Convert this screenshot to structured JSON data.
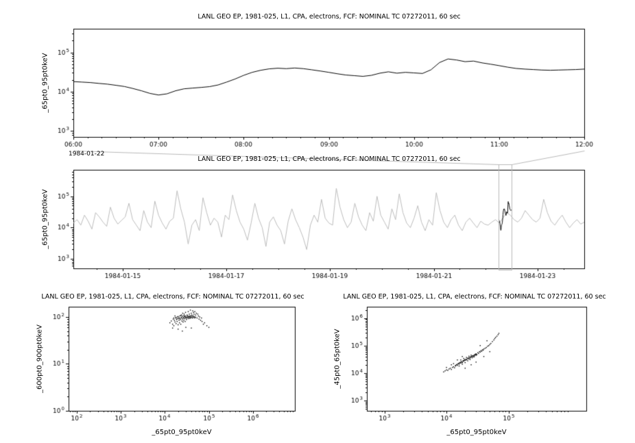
{
  "chart_data": [
    {
      "id": "timeseries-zoom",
      "type": "line",
      "title": "LANL GEO EP, 1981-025, L1, CPA, electrons, FCF: NOMINAL TC 07272011, 60 sec",
      "ylabel": "_65pt0_95pt0keV",
      "date_label": "1984-01-22",
      "x_axis": {
        "scale": "linear",
        "range": [
          6,
          12
        ],
        "tick_values": [
          6,
          7,
          8,
          9,
          10,
          11,
          12
        ],
        "tick_labels": [
          "06:00",
          "07:00",
          "08:00",
          "09:00",
          "10:00",
          "11:00",
          "12:00"
        ],
        "minor_step": 0.1666667
      },
      "y_axis": {
        "scale": "log",
        "range": [
          700,
          400000
        ],
        "tick_exponents": [
          3,
          4,
          5
        ]
      },
      "series": [
        {
          "name": "_65pt0_95pt0keV",
          "color": "#000000",
          "x_start": 6.0,
          "x_step": 0.1,
          "values": [
            18000,
            17500,
            17000,
            16200,
            15500,
            14500,
            13500,
            12000,
            10500,
            9000,
            8200,
            8800,
            10500,
            11800,
            12300,
            12800,
            13400,
            14800,
            17500,
            21000,
            26000,
            31000,
            35000,
            38000,
            39500,
            38500,
            40000,
            38500,
            36000,
            33500,
            31000,
            28500,
            26500,
            25500,
            24500,
            26000,
            29500,
            32000,
            29500,
            31000,
            30000,
            29000,
            36000,
            55000,
            68000,
            64000,
            58000,
            60000,
            54000,
            50000,
            46000,
            42000,
            39000,
            37500,
            36500,
            35500,
            35000,
            35500,
            36000,
            36500,
            37500
          ]
        }
      ]
    },
    {
      "id": "timeseries-context",
      "type": "line",
      "title": "LANL GEO EP, 1981-025, L1, CPA, electrons, FCF: NOMINAL TC 07272011, 60 sec",
      "ylabel": "_65pt0_95pt0keV",
      "x_axis": {
        "scale": "linear",
        "range": [
          14.05,
          23.9
        ],
        "tick_values": [
          15,
          17,
          19,
          21,
          23
        ],
        "tick_labels": [
          "1984-01-15",
          "1984-01-17",
          "1984-01-19",
          "1984-01-21",
          "1984-01-23"
        ],
        "minor_step": 0.5
      },
      "y_axis": {
        "scale": "log",
        "range": [
          500,
          700000
        ],
        "tick_exponents": [
          3,
          4,
          5
        ]
      },
      "selection": {
        "x_range": [
          22.25,
          22.5
        ],
        "color": "#b8b8b8"
      },
      "series": [
        {
          "name": "context",
          "color": "#bbbbbb",
          "x_start": 14.05,
          "x_step": 0.0714,
          "values": [
            14000,
            18000,
            12000,
            25000,
            16000,
            9000,
            30000,
            22000,
            15000,
            11000,
            45000,
            20000,
            13000,
            17000,
            22000,
            60000,
            18000,
            12000,
            8000,
            35000,
            15000,
            10000,
            70000,
            25000,
            14000,
            9000,
            16000,
            20000,
            150000,
            40000,
            15000,
            3000,
            12000,
            18000,
            8000,
            90000,
            30000,
            12000,
            20000,
            15000,
            5000,
            25000,
            18000,
            110000,
            35000,
            15000,
            9000,
            4000,
            14000,
            60000,
            20000,
            10000,
            2500,
            15000,
            22000,
            12000,
            8000,
            3000,
            16000,
            40000,
            18000,
            10000,
            5000,
            2000,
            12000,
            25000,
            15000,
            80000,
            20000,
            14000,
            12000,
            180000,
            45000,
            18000,
            10000,
            15000,
            60000,
            22000,
            12000,
            8000,
            30000,
            16000,
            100000,
            25000,
            15000,
            9000,
            40000,
            18000,
            120000,
            30000,
            14000,
            10000,
            20000,
            50000,
            15000,
            8000,
            18000,
            12000,
            130000,
            35000,
            15000,
            10000,
            18000,
            25000,
            12000,
            8000,
            15000,
            20000,
            14000,
            10000,
            16000,
            13000,
            12000,
            15000,
            18000,
            14000,
            20000,
            30000,
            25000,
            18000,
            15000,
            20000,
            35000,
            25000,
            18000,
            15000,
            20000,
            80000,
            30000,
            16000,
            12000,
            18000,
            25000,
            15000,
            10000,
            14000,
            18000,
            13000,
            15000
          ]
        },
        {
          "name": "highlight",
          "color": "#000000",
          "x_start": 22.25,
          "x_step": 0.0041667,
          "values_ref_chart": 0
        }
      ]
    },
    {
      "id": "scatter-600-900",
      "type": "scatter",
      "title": "LANL GEO EP, 1981-025, L1, CPA, electrons, FCF: NOMINAL TC 07272011, 60 sec",
      "xlabel": "_65pt0_95pt0keV",
      "ylabel": "_600pt0_900pt0keV",
      "x_axis": {
        "scale": "log",
        "range": [
          65,
          9000000
        ],
        "tick_exponents": [
          2,
          3,
          4,
          5,
          6
        ]
      },
      "y_axis": {
        "scale": "log",
        "range": [
          1,
          165
        ],
        "tick_exponents": [
          0,
          1,
          2
        ]
      },
      "points": [
        [
          13000,
          75
        ],
        [
          14000,
          82
        ],
        [
          15000,
          70
        ],
        [
          15500,
          90
        ],
        [
          16000,
          65
        ],
        [
          16500,
          85
        ],
        [
          17000,
          78
        ],
        [
          17500,
          95
        ],
        [
          18000,
          72
        ],
        [
          18500,
          88
        ],
        [
          19000,
          80
        ],
        [
          19500,
          100
        ],
        [
          20000,
          68
        ],
        [
          20500,
          92
        ],
        [
          21000,
          85
        ],
        [
          21500,
          75
        ],
        [
          22000,
          105
        ],
        [
          22500,
          88
        ],
        [
          23000,
          70
        ],
        [
          23500,
          95
        ],
        [
          24000,
          110
        ],
        [
          24500,
          82
        ],
        [
          25000,
          90
        ],
        [
          25500,
          120
        ],
        [
          26000,
          78
        ],
        [
          26500,
          98
        ],
        [
          27000,
          85
        ],
        [
          27500,
          115
        ],
        [
          28000,
          92
        ],
        [
          28500,
          105
        ],
        [
          29000,
          80
        ],
        [
          29500,
          125
        ],
        [
          30000,
          95
        ],
        [
          31000,
          88
        ],
        [
          32000,
          110
        ],
        [
          33000,
          100
        ],
        [
          34000,
          130
        ],
        [
          35000,
          92
        ],
        [
          36000,
          115
        ],
        [
          37000,
          105
        ],
        [
          38000,
          140
        ],
        [
          39000,
          98
        ],
        [
          40000,
          120
        ],
        [
          41000,
          110
        ],
        [
          42000,
          95
        ],
        [
          43000,
          135
        ],
        [
          44000,
          105
        ],
        [
          45000,
          125
        ],
        [
          46000,
          115
        ],
        [
          47000,
          100
        ],
        [
          48000,
          130
        ],
        [
          50000,
          110
        ],
        [
          52000,
          120
        ],
        [
          54000,
          95
        ],
        [
          56000,
          115
        ],
        [
          58000,
          105
        ],
        [
          60000,
          90
        ],
        [
          62000,
          100
        ],
        [
          65000,
          85
        ],
        [
          68000,
          95
        ],
        [
          70000,
          80
        ],
        [
          75000,
          70
        ],
        [
          80000,
          75
        ],
        [
          90000,
          65
        ],
        [
          100000,
          60
        ],
        [
          20000,
          55
        ],
        [
          30000,
          60
        ],
        [
          25000,
          50
        ],
        [
          40000,
          58
        ],
        [
          15000,
          58
        ],
        [
          16000,
          95
        ],
        [
          17000,
          105
        ],
        [
          18000,
          98
        ],
        [
          19000,
          92
        ],
        [
          20000,
          102
        ],
        [
          21000,
          96
        ],
        [
          22000,
          93
        ],
        [
          23000,
          108
        ],
        [
          24000,
          99
        ],
        [
          25000,
          103
        ],
        [
          26000,
          94
        ],
        [
          27000,
          107
        ],
        [
          28000,
          101
        ],
        [
          29000,
          97
        ],
        [
          30000,
          104
        ],
        [
          31000,
          99
        ],
        [
          32000,
          94
        ],
        [
          33000,
          106
        ],
        [
          34000,
          98
        ],
        [
          35000,
          102
        ],
        [
          36000,
          96
        ],
        [
          37000,
          100
        ],
        [
          38000,
          94
        ],
        [
          39000,
          105
        ],
        [
          40000,
          99
        ],
        [
          42000,
          103
        ],
        [
          44000,
          97
        ],
        [
          46000,
          101
        ],
        [
          48000,
          95
        ],
        [
          50000,
          99
        ]
      ]
    },
    {
      "id": "scatter-45-65",
      "type": "scatter",
      "title": "LANL GEO EP, 1981-025, L1, CPA, electrons, FCF: NOMINAL TC 07272011, 60 sec",
      "xlabel": "_65pt0_95pt0keV",
      "ylabel": "_45pt0_65pt0keV",
      "x_axis": {
        "scale": "log",
        "range": [
          520,
          1800000
        ],
        "tick_exponents": [
          3,
          4,
          5
        ]
      },
      "y_axis": {
        "scale": "log",
        "range": [
          420,
          2600000
        ],
        "tick_exponents": [
          3,
          4,
          5,
          6
        ]
      },
      "points": [
        [
          9000,
          11000
        ],
        [
          9500,
          12000
        ],
        [
          10000,
          13000
        ],
        [
          10500,
          12500
        ],
        [
          11000,
          14000
        ],
        [
          11500,
          15000
        ],
        [
          12000,
          13500
        ],
        [
          12500,
          16000
        ],
        [
          13000,
          17000
        ],
        [
          13500,
          15500
        ],
        [
          14000,
          18000
        ],
        [
          14500,
          20000
        ],
        [
          15000,
          19000
        ],
        [
          15500,
          22000
        ],
        [
          16000,
          21000
        ],
        [
          16500,
          24000
        ],
        [
          17000,
          23000
        ],
        [
          17500,
          26000
        ],
        [
          18000,
          25000
        ],
        [
          18500,
          28000
        ],
        [
          19000,
          27000
        ],
        [
          19500,
          30000
        ],
        [
          20000,
          29000
        ],
        [
          21000,
          32000
        ],
        [
          22000,
          35000
        ],
        [
          23000,
          33000
        ],
        [
          24000,
          38000
        ],
        [
          25000,
          40000
        ],
        [
          26000,
          42000
        ],
        [
          27000,
          39000
        ],
        [
          28000,
          45000
        ],
        [
          29000,
          48000
        ],
        [
          30000,
          50000
        ],
        [
          31000,
          47000
        ],
        [
          32000,
          55000
        ],
        [
          33000,
          52000
        ],
        [
          34000,
          60000
        ],
        [
          35000,
          58000
        ],
        [
          36000,
          65000
        ],
        [
          37000,
          62000
        ],
        [
          38000,
          70000
        ],
        [
          39000,
          68000
        ],
        [
          40000,
          75000
        ],
        [
          42000,
          80000
        ],
        [
          44000,
          85000
        ],
        [
          46000,
          95000
        ],
        [
          48000,
          100000
        ],
        [
          50000,
          110000
        ],
        [
          52000,
          120000
        ],
        [
          55000,
          140000
        ],
        [
          58000,
          160000
        ],
        [
          60000,
          180000
        ],
        [
          62000,
          200000
        ],
        [
          65000,
          220000
        ],
        [
          12000,
          20000
        ],
        [
          15000,
          30000
        ],
        [
          20000,
          15000
        ],
        [
          25000,
          20000
        ],
        [
          30000,
          25000
        ],
        [
          18000,
          40000
        ],
        [
          40000,
          40000
        ],
        [
          50000,
          60000
        ],
        [
          35000,
          100000
        ],
        [
          45000,
          150000
        ],
        [
          10000,
          16000
        ],
        [
          13000,
          22000
        ],
        [
          14000,
          19000
        ],
        [
          15000,
          21000
        ],
        [
          16000,
          23000
        ],
        [
          17000,
          25000
        ],
        [
          18000,
          24000
        ],
        [
          19000,
          28000
        ],
        [
          20000,
          31000
        ],
        [
          21000,
          30000
        ],
        [
          22000,
          33000
        ],
        [
          23000,
          36000
        ],
        [
          24000,
          35000
        ],
        [
          25000,
          38000
        ],
        [
          26000,
          41000
        ],
        [
          27000,
          43000
        ],
        [
          28000,
          42000
        ],
        [
          29000,
          46000
        ],
        [
          30000,
          48000
        ],
        [
          16000,
          18000
        ],
        [
          18000,
          21000
        ],
        [
          20000,
          24000
        ],
        [
          22000,
          28000
        ],
        [
          24000,
          31000
        ],
        [
          26000,
          36000
        ],
        [
          28000,
          39000
        ],
        [
          30000,
          44000
        ],
        [
          17000,
          30000
        ],
        [
          19000,
          34000
        ],
        [
          21000,
          37000
        ],
        [
          23000,
          41000
        ],
        [
          25000,
          45000
        ],
        [
          68000,
          250000
        ],
        [
          70000,
          280000
        ]
      ]
    }
  ],
  "colors": {
    "series": "#000000",
    "context_series": "#bbbbbb",
    "selection": "#b8b8b8",
    "background": "#ffffff"
  }
}
